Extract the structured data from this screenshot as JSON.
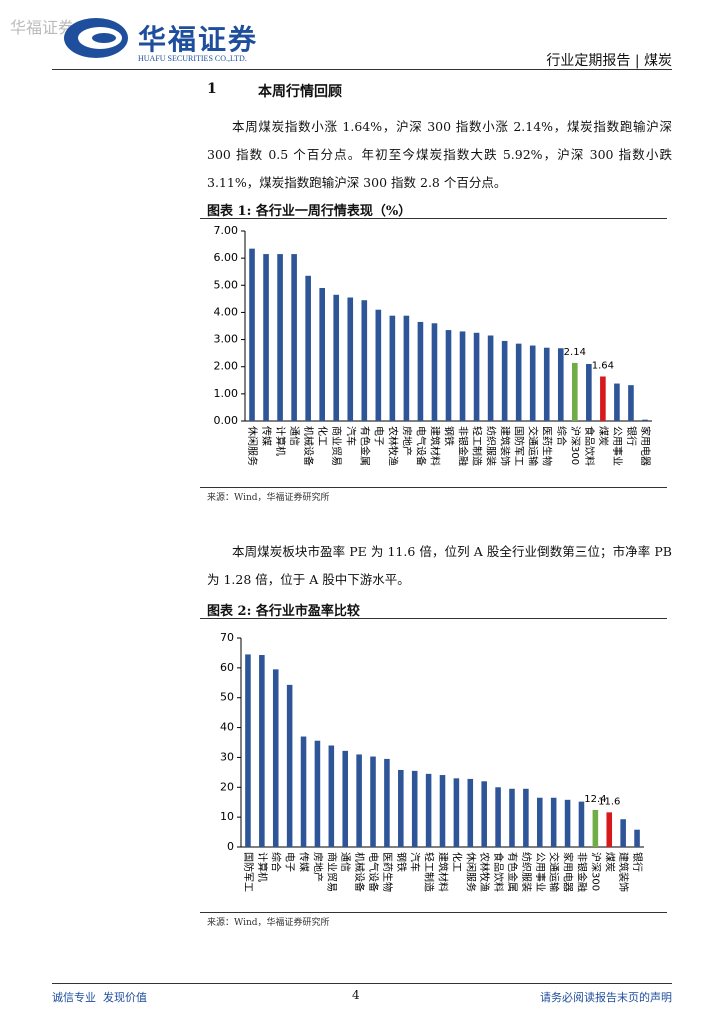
{
  "header": {
    "watermark": "华福证券",
    "logo_cn": "华福证券",
    "logo_en": "HUAFU SECURITIES CO.,LTD.",
    "report_label": "行业定期报告 | 煤炭"
  },
  "section": {
    "number": "1",
    "title": "本周行情回顾"
  },
  "paragraphs": [
    "本周煤炭指数小涨 1.64%，沪深 300 指数小涨 2.14%，煤炭指数跑输沪深 300 指数 0.5 个百分点。年初至今煤炭指数大跌 5.92%，沪深 300 指数小跌 3.11%，煤炭指数跑输沪深 300 指数 2.8 个百分点。",
    "本周煤炭板块市盈率 PE 为 11.6 倍，位列 A 股全行业倒数第三位；市净率 PB 为 1.28 倍，位于 A 股中下游水平。"
  ],
  "chart_data": [
    {
      "type": "bar",
      "title": "图表 1: 各行业一周行情表现（%）",
      "source": "来源：Wind，华福证券研究所",
      "categories": [
        "休闲服务",
        "传媒",
        "计算机",
        "通信",
        "机械设备",
        "化工",
        "商业贸易",
        "汽车",
        "有色金属",
        "电子",
        "农林牧渔",
        "房地产",
        "电气设备",
        "建筑材料",
        "钢铁",
        "非银金融",
        "轻工制造",
        "纺织服装",
        "建筑装饰",
        "国防军工",
        "交通运输",
        "医药生物",
        "综合",
        "沪深300",
        "食品饮料",
        "煤炭",
        "公用事业",
        "银行",
        "家用电器"
      ],
      "values": [
        6.35,
        6.15,
        6.15,
        6.15,
        5.35,
        4.9,
        4.65,
        4.55,
        4.45,
        4.1,
        3.88,
        3.88,
        3.65,
        3.6,
        3.35,
        3.3,
        3.25,
        3.15,
        2.95,
        2.85,
        2.78,
        2.7,
        2.68,
        2.14,
        2.1,
        1.64,
        1.38,
        1.32,
        0.05
      ],
      "value_labels": [
        null,
        null,
        null,
        null,
        null,
        null,
        null,
        null,
        null,
        null,
        null,
        null,
        null,
        null,
        null,
        null,
        null,
        null,
        null,
        null,
        null,
        null,
        null,
        "2.14",
        null,
        "1.64",
        null,
        null,
        null
      ],
      "colors": [
        "#2e5597",
        "#2e5597",
        "#2e5597",
        "#2e5597",
        "#2e5597",
        "#2e5597",
        "#2e5597",
        "#2e5597",
        "#2e5597",
        "#2e5597",
        "#2e5597",
        "#2e5597",
        "#2e5597",
        "#2e5597",
        "#2e5597",
        "#2e5597",
        "#2e5597",
        "#2e5597",
        "#2e5597",
        "#2e5597",
        "#2e5597",
        "#2e5597",
        "#2e5597",
        "#70ad47",
        "#2e5597",
        "#d7191c",
        "#2e5597",
        "#2e5597",
        "#2e5597"
      ],
      "ylim": [
        0,
        7
      ],
      "yticks": [
        {
          "value": 0,
          "label": "0.00"
        },
        {
          "value": 1,
          "label": "1.00"
        },
        {
          "value": 2,
          "label": "2.00"
        },
        {
          "value": 3,
          "label": "3.00"
        },
        {
          "value": 4,
          "label": "4.00"
        },
        {
          "value": 5,
          "label": "5.00"
        },
        {
          "value": 6,
          "label": "6.00"
        },
        {
          "value": 7,
          "label": "7.00"
        }
      ]
    },
    {
      "type": "bar",
      "title": "图表 2: 各行业市盈率比较",
      "source": "来源：Wind，华福证券研究所",
      "categories": [
        "国防军工",
        "计算机",
        "综合",
        "电子",
        "传媒",
        "房地产",
        "商业贸易",
        "通信",
        "机械设备",
        "电气设备",
        "医药生物",
        "钢铁",
        "汽车",
        "轻工制造",
        "建筑材料",
        "化工",
        "休闲服务",
        "农林牧渔",
        "食品饮料",
        "有色金属",
        "纺织服装",
        "公用事业",
        "交通运输",
        "家用电器",
        "非银金融",
        "沪深300",
        "煤炭",
        "建筑装饰",
        "银行"
      ],
      "values": [
        64.5,
        64.3,
        59.5,
        54.3,
        37,
        35.6,
        34,
        32.2,
        31,
        30.3,
        29.5,
        25.8,
        25.5,
        24.5,
        24.1,
        23,
        22.8,
        22,
        20,
        19.5,
        19.5,
        16.5,
        16.5,
        15.8,
        15.2,
        12.4,
        11.6,
        9.3,
        5.8
      ],
      "value_labels": [
        null,
        null,
        null,
        null,
        null,
        null,
        null,
        null,
        null,
        null,
        null,
        null,
        null,
        null,
        null,
        null,
        null,
        null,
        null,
        null,
        null,
        null,
        null,
        null,
        null,
        "12.4",
        "11.6",
        null,
        null
      ],
      "colors": [
        "#2e5597",
        "#2e5597",
        "#2e5597",
        "#2e5597",
        "#2e5597",
        "#2e5597",
        "#2e5597",
        "#2e5597",
        "#2e5597",
        "#2e5597",
        "#2e5597",
        "#2e5597",
        "#2e5597",
        "#2e5597",
        "#2e5597",
        "#2e5597",
        "#2e5597",
        "#2e5597",
        "#2e5597",
        "#2e5597",
        "#2e5597",
        "#2e5597",
        "#2e5597",
        "#2e5597",
        "#2e5597",
        "#70ad47",
        "#d7191c",
        "#2e5597",
        "#2e5597"
      ],
      "ylim": [
        0,
        70
      ],
      "yticks": [
        0,
        10,
        20,
        30,
        40,
        50,
        60,
        70
      ]
    }
  ],
  "footer": {
    "slogan": "诚信专业  发现价值",
    "page": "4",
    "notice": "请务必阅读报告末页的声明"
  }
}
